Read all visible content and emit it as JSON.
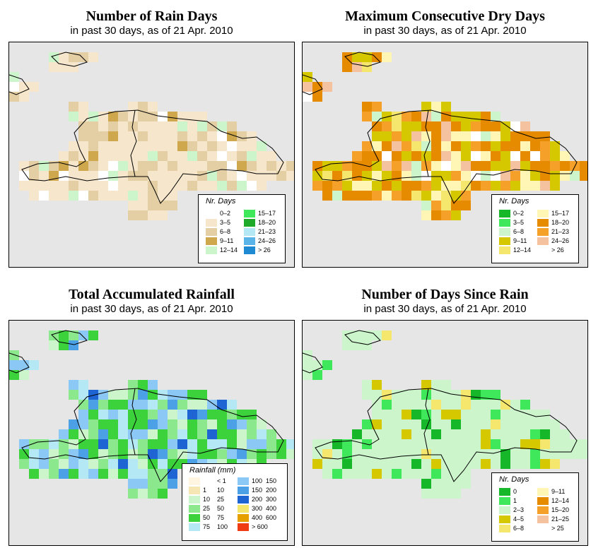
{
  "panels": [
    {
      "id": "rain_days",
      "title": "Number of Rain Days",
      "subtitle": "in past 30 days, as of  21 Apr. 2010",
      "legend": {
        "title": "Nr. Days",
        "items": [
          {
            "label": "0–2",
            "color": "#ffffff"
          },
          {
            "label": "3–5",
            "color": "#f5e6cc"
          },
          {
            "label": "6–8",
            "color": "#e4cfa5"
          },
          {
            "label": "9–11",
            "color": "#cfa84e"
          },
          {
            "label": "12–14",
            "color": "#ccf5cc"
          },
          {
            "label": "15–17",
            "color": "#3fe85a"
          },
          {
            "label": "18–20",
            "color": "#1faa2a"
          },
          {
            "label": "21–23",
            "color": "#b4e8f5"
          },
          {
            "label": "24–26",
            "color": "#5ab4e8"
          },
          {
            "label": "> 26",
            "color": "#1f8ad2"
          }
        ]
      }
    },
    {
      "id": "dry_days",
      "title": "Maximum Consecutive Dry Days",
      "subtitle": "in past 30 days, as of  21 Apr. 2010",
      "legend": {
        "title": "Nr. Days",
        "items": [
          {
            "label": "0–2",
            "color": "#16b82a"
          },
          {
            "label": "3–5",
            "color": "#3fe85a"
          },
          {
            "label": "6–8",
            "color": "#ccf5cc"
          },
          {
            "label": "9–11",
            "color": "#d6c800"
          },
          {
            "label": "12–14",
            "color": "#f5e66e"
          },
          {
            "label": "15–17",
            "color": "#fff5b4"
          },
          {
            "label": "18–20",
            "color": "#e68a00"
          },
          {
            "label": "21–23",
            "color": "#f5a028"
          },
          {
            "label": "24–26",
            "color": "#f5c2a0"
          },
          {
            "label": "> 26",
            "color": "#ffffff"
          }
        ]
      }
    },
    {
      "id": "total_rainfall",
      "title": "Total Accumulated Rainfall",
      "subtitle": "in past 30 days, as of  21 Apr. 2010",
      "legend": {
        "title": "Rainfall (mm)",
        "items": [
          {
            "from": "",
            "to": "< 1",
            "color": "#fff5e0"
          },
          {
            "from": "1",
            "to": "10",
            "color": "#f5e6b4"
          },
          {
            "from": "10",
            "to": "25",
            "color": "#ccf5cc"
          },
          {
            "from": "25",
            "to": "50",
            "color": "#8ce88c"
          },
          {
            "from": "50",
            "to": "75",
            "color": "#3cd23c"
          },
          {
            "from": "75",
            "to": "100",
            "color": "#b4e8f5"
          },
          {
            "from": "100",
            "to": "150",
            "color": "#8cc8f5"
          },
          {
            "from": "150",
            "to": "200",
            "color": "#4ba0e6"
          },
          {
            "from": "200",
            "to": "300",
            "color": "#1e64d2"
          },
          {
            "from": "300",
            "to": "400",
            "color": "#f5e66e"
          },
          {
            "from": "400",
            "to": "600",
            "color": "#e6a000"
          },
          {
            "from": "",
            "to": "> 600",
            "color": "#f03c14"
          }
        ]
      }
    },
    {
      "id": "days_since_rain",
      "title": "Number of Days Since Rain",
      "subtitle": "in past 30 days, as of  21 Apr. 2010",
      "legend": {
        "title": "Nr. Days",
        "items": [
          {
            "label": "0",
            "color": "#16b82a"
          },
          {
            "label": "1",
            "color": "#3fe85a"
          },
          {
            "label": "2–3",
            "color": "#ccf5cc"
          },
          {
            "label": "4–5",
            "color": "#d6c800"
          },
          {
            "label": "6–8",
            "color": "#f5e66e"
          },
          {
            "label": "9–11",
            "color": "#fff5b4"
          },
          {
            "label": "12–14",
            "color": "#e68a00"
          },
          {
            "label": "15–20",
            "color": "#f5a028"
          },
          {
            "label": "21–25",
            "color": "#f5c2a0"
          },
          {
            "label": "> 25",
            "color": "#ffffff"
          }
        ]
      }
    }
  ]
}
